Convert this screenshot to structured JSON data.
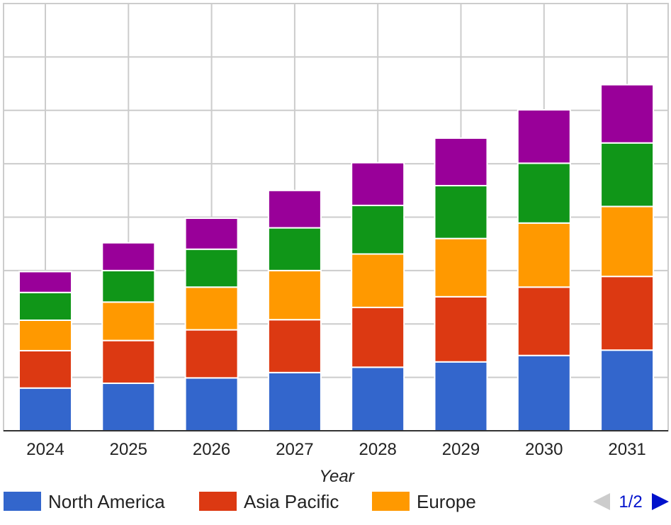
{
  "chart_data": {
    "type": "bar",
    "stacked": true,
    "categories": [
      "2024",
      "2025",
      "2026",
      "2027",
      "2028",
      "2029",
      "2030",
      "2031"
    ],
    "xlabel": "Year",
    "ylim": [
      0,
      8
    ],
    "grid": true,
    "series": [
      {
        "name": "North America",
        "color": "#3366cc",
        "values": [
          0.8,
          0.89,
          0.99,
          1.09,
          1.19,
          1.29,
          1.41,
          1.51
        ]
      },
      {
        "name": "Asia Pacific",
        "color": "#dc3912",
        "values": [
          0.7,
          0.8,
          0.9,
          0.99,
          1.12,
          1.22,
          1.28,
          1.38
        ]
      },
      {
        "name": "Europe",
        "color": "#ff9900",
        "values": [
          0.57,
          0.72,
          0.8,
          0.92,
          1.0,
          1.09,
          1.2,
          1.31
        ]
      },
      {
        "name": "",
        "color": "#109618",
        "values": [
          0.52,
          0.59,
          0.71,
          0.8,
          0.91,
          0.99,
          1.12,
          1.19
        ]
      },
      {
        "name": "",
        "color": "#990099",
        "values": [
          0.39,
          0.52,
          0.58,
          0.7,
          0.8,
          0.89,
          1.0,
          1.09
        ]
      }
    ],
    "legend": {
      "position": "bottom",
      "visible_entries": [
        "North America",
        "Asia Pacific",
        "Europe"
      ],
      "pager": {
        "label": "1/2",
        "prev_enabled": false,
        "next_enabled": true
      }
    }
  },
  "colors": {
    "grid": "#cccccc",
    "baseline": "#333333",
    "pager_active": "#0011cc",
    "pager_inactive": "#cccccc"
  }
}
